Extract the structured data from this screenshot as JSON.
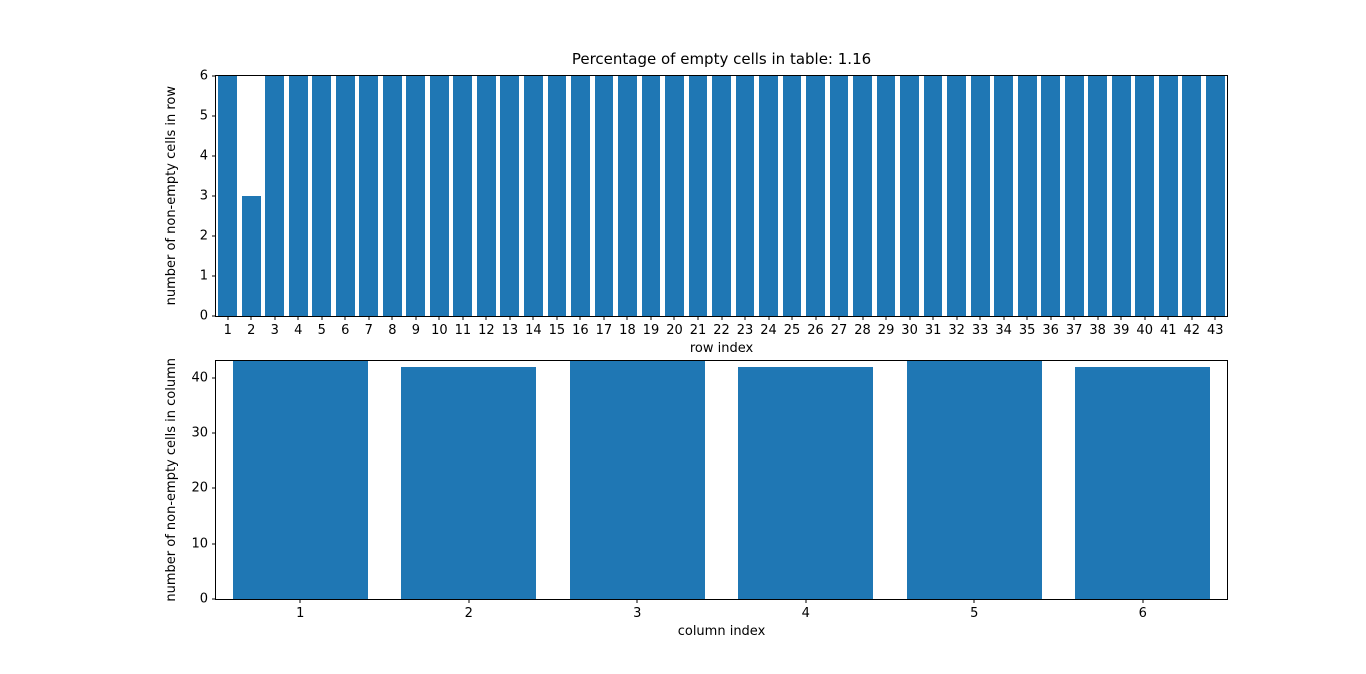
{
  "figure": {
    "background_color": "#ffffff",
    "bar_color": "#1f77b4",
    "spine_color": "#000000"
  },
  "chart_data": [
    {
      "type": "bar",
      "title": "Percentage of empty cells in table: 1.16",
      "xlabel": "row index",
      "ylabel": "number of non-empty cells in row",
      "categories": [
        "1",
        "2",
        "3",
        "4",
        "5",
        "6",
        "7",
        "8",
        "9",
        "10",
        "11",
        "12",
        "13",
        "14",
        "15",
        "16",
        "17",
        "18",
        "19",
        "20",
        "21",
        "22",
        "23",
        "24",
        "25",
        "26",
        "27",
        "28",
        "29",
        "30",
        "31",
        "32",
        "33",
        "34",
        "35",
        "36",
        "37",
        "38",
        "39",
        "40",
        "41",
        "42",
        "43"
      ],
      "values": [
        6,
        3,
        6,
        6,
        6,
        6,
        6,
        6,
        6,
        6,
        6,
        6,
        6,
        6,
        6,
        6,
        6,
        6,
        6,
        6,
        6,
        6,
        6,
        6,
        6,
        6,
        6,
        6,
        6,
        6,
        6,
        6,
        6,
        6,
        6,
        6,
        6,
        6,
        6,
        6,
        6,
        6,
        6
      ],
      "ylim": [
        0,
        6
      ],
      "yticks": [
        0,
        1,
        2,
        3,
        4,
        5,
        6
      ],
      "grid": false,
      "legend": "none",
      "bar_width_fraction": 0.8
    },
    {
      "type": "bar",
      "title": "",
      "xlabel": "column index",
      "ylabel": "number of non-empty cells in column",
      "categories": [
        "1",
        "2",
        "3",
        "4",
        "5",
        "6"
      ],
      "values": [
        43,
        42,
        43,
        42,
        43,
        42
      ],
      "ylim": [
        0,
        43
      ],
      "yticks": [
        0,
        10,
        20,
        30,
        40
      ],
      "grid": false,
      "legend": "none",
      "bar_width_fraction": 0.8
    }
  ]
}
